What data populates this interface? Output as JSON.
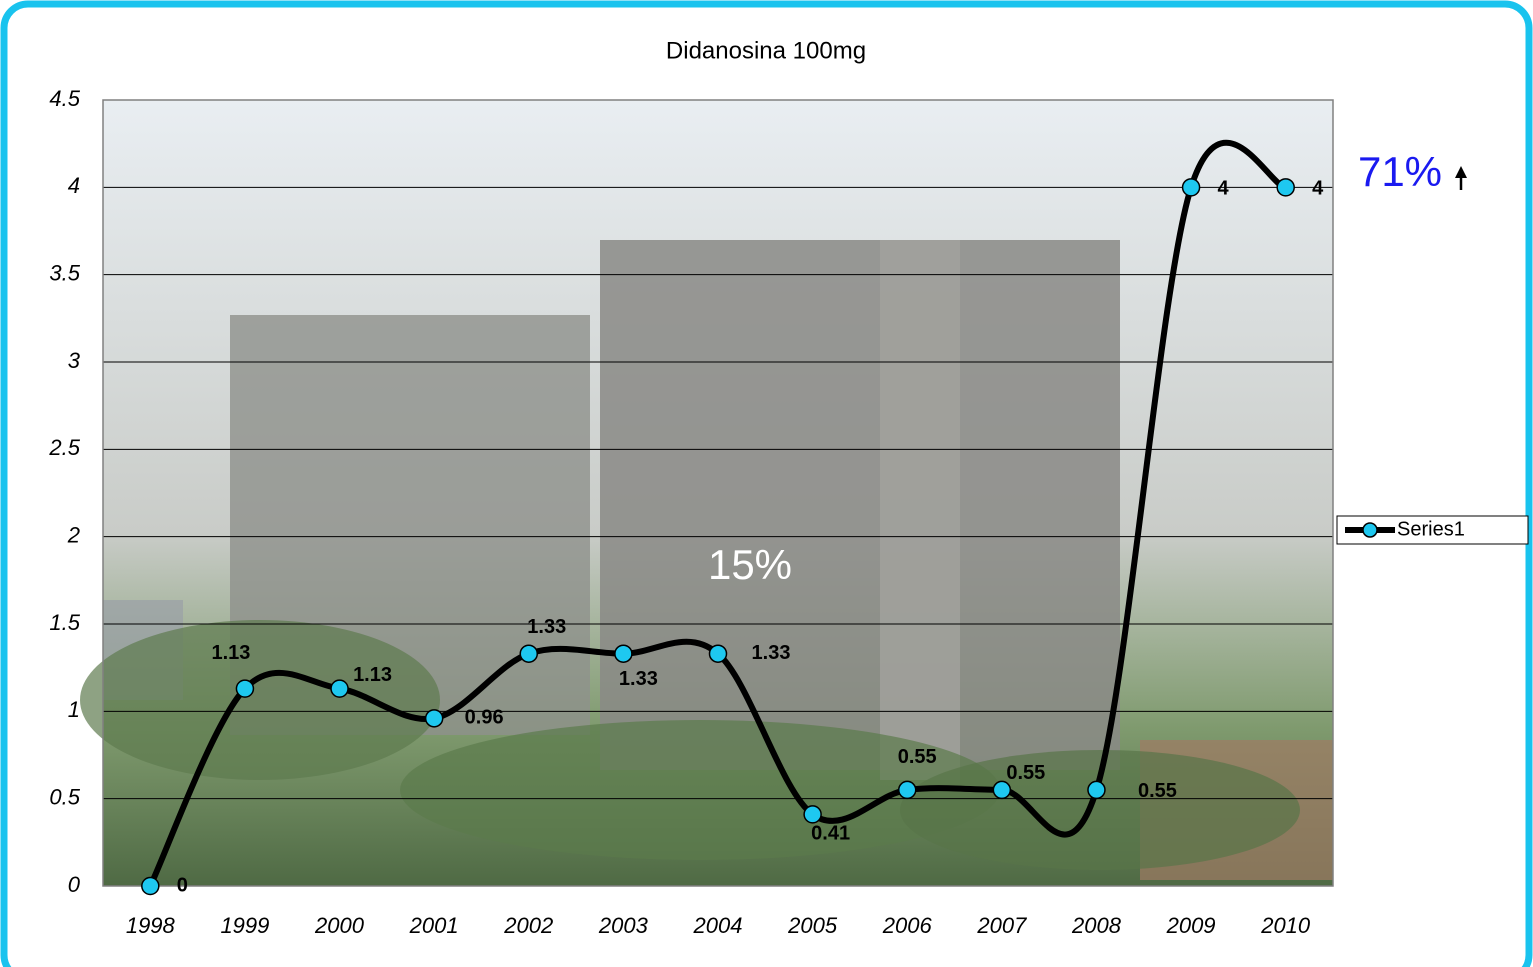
{
  "chart_data": {
    "type": "line",
    "title": "Didanosina 100mg",
    "categories": [
      "1998",
      "1999",
      "2000",
      "2001",
      "2002",
      "2003",
      "2004",
      "2005",
      "2006",
      "2007",
      "2008",
      "2009",
      "2010"
    ],
    "series": [
      {
        "name": "Series1",
        "color": "#1ec8f0",
        "line_color": "#000000",
        "values": [
          0,
          1.13,
          1.13,
          0.96,
          1.33,
          1.33,
          1.33,
          0.41,
          0.55,
          0.55,
          0.55,
          4,
          4
        ]
      }
    ],
    "ylim": [
      0,
      4.5
    ],
    "yticks": [
      0,
      0.5,
      1,
      1.5,
      2,
      2.5,
      3,
      3.5,
      4,
      4.5
    ],
    "grid": true,
    "smooth": true,
    "legend": "right",
    "annotations": [
      "15%",
      "71%"
    ]
  }
}
